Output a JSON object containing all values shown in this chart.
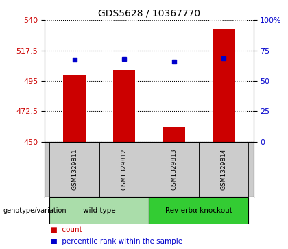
{
  "title": "GDS5628 / 10367770",
  "samples": [
    "GSM1329811",
    "GSM1329812",
    "GSM1329813",
    "GSM1329814"
  ],
  "bar_values": [
    499,
    503,
    461,
    533
  ],
  "percentile_values": [
    67.5,
    68,
    66,
    68.5
  ],
  "ylim_left": [
    450,
    540
  ],
  "ylim_right": [
    0,
    100
  ],
  "yticks_left": [
    450,
    472.5,
    495,
    517.5,
    540
  ],
  "yticks_right": [
    0,
    25,
    50,
    75,
    100
  ],
  "ytick_labels_left": [
    "450",
    "472.5",
    "495",
    "517.5",
    "540"
  ],
  "ytick_labels_right": [
    "0",
    "25",
    "50",
    "75",
    "100%"
  ],
  "bar_color": "#cc0000",
  "dot_color": "#0000cc",
  "bar_width": 0.45,
  "bar_bottom": 450,
  "groups": [
    {
      "label": "wild type",
      "samples": [
        0,
        1
      ],
      "color": "#aaddaa"
    },
    {
      "label": "Rev-erbα knockout",
      "samples": [
        2,
        3
      ],
      "color": "#33cc33"
    }
  ],
  "group_label": "genotype/variation",
  "legend_items": [
    {
      "color": "#cc0000",
      "label": "count"
    },
    {
      "color": "#0000cc",
      "label": "percentile rank within the sample"
    }
  ],
  "background_color": "#ffffff",
  "plot_bg_color": "#ffffff",
  "sample_area_color": "#cccccc",
  "grid_style": "dotted"
}
